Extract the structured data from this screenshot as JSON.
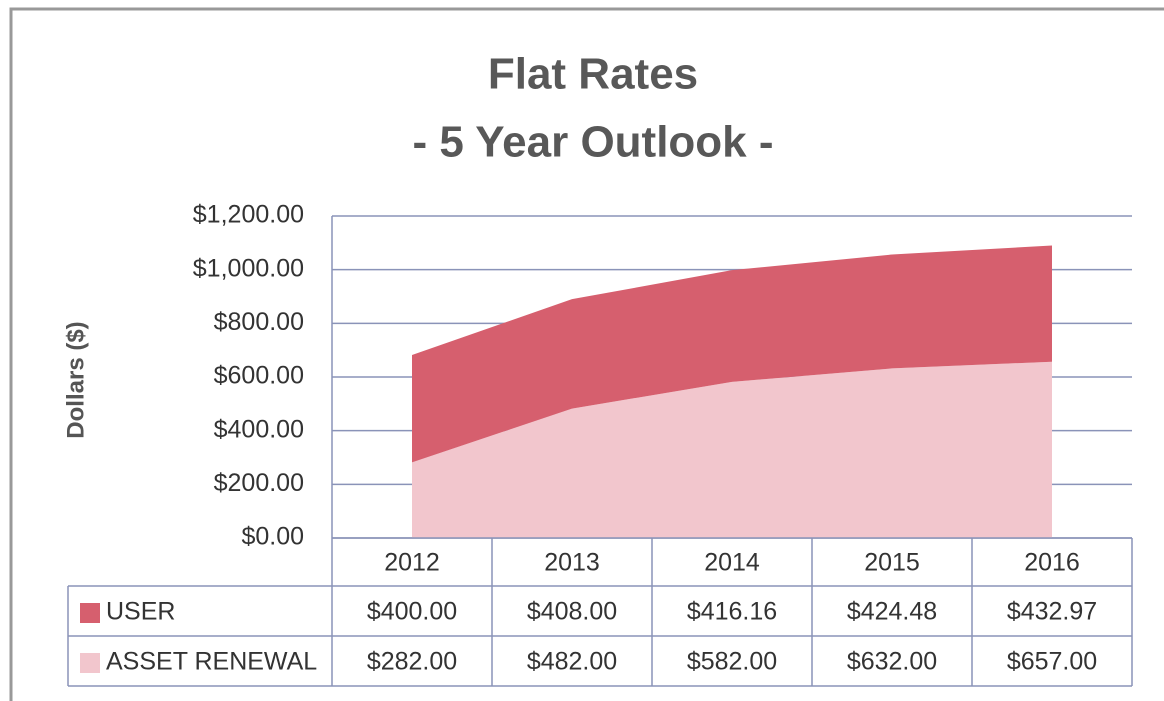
{
  "chart_data": {
    "type": "stacked_area",
    "title": [
      "Flat Rates",
      "- 5 Year Outlook -"
    ],
    "y_label": "Dollars ($)",
    "categories": [
      "2012",
      "2013",
      "2014",
      "2015",
      "2016"
    ],
    "series": [
      {
        "name": "USER",
        "color": "#d65f6e",
        "values": [
          400,
          408,
          416.16,
          424.48,
          432.97
        ],
        "value_labels": [
          "$400.00",
          "$408.00",
          "$416.16",
          "$424.48",
          "$432.97"
        ]
      },
      {
        "name": "ASSET RENEWAL",
        "color": "#f2c6cd",
        "values": [
          282,
          482,
          582,
          632,
          657
        ],
        "value_labels": [
          "$282.00",
          "$482.00",
          "$582.00",
          "$632.00",
          "$657.00"
        ]
      }
    ],
    "stack_order": "bottom-up-reverse",
    "ylim": [
      0,
      1200
    ],
    "yticks": [
      {
        "value": 0,
        "label": "$0.00"
      },
      {
        "value": 200,
        "label": "$200.00"
      },
      {
        "value": 400,
        "label": "$400.00"
      },
      {
        "value": 600,
        "label": "$600.00"
      },
      {
        "value": 800,
        "label": "$800.00"
      },
      {
        "value": 1000,
        "label": "$1,000.00"
      },
      {
        "value": 1200,
        "label": "$1,200.00"
      }
    ],
    "grid": true
  }
}
